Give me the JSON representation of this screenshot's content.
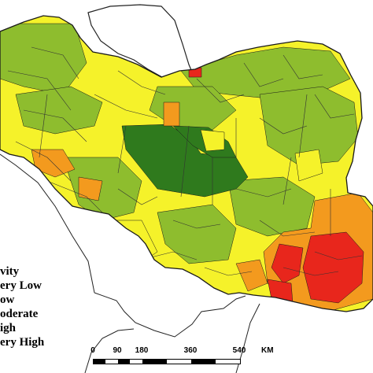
{
  "colors": {
    "very_high": "#e8261c",
    "high": "#f39a1e",
    "moderate": "#f5f22a",
    "low": "#8ebd2e",
    "very_low": "#2f7a1d",
    "outline": "#1a1a1a",
    "water": "#ffffff"
  },
  "legend": {
    "title": "vity",
    "items": [
      "ery Low",
      "ow",
      "oderate",
      "igh",
      "ery High"
    ]
  },
  "scale": {
    "ticks": [
      "0",
      "90",
      "180",
      "360",
      "540"
    ],
    "unit": "KM"
  }
}
